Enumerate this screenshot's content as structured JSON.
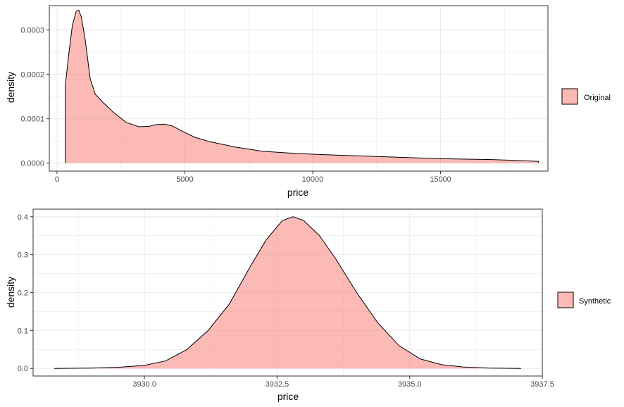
{
  "colors": {
    "fill": "#F8766D",
    "fill_opacity": 0.5,
    "outline": "#000000",
    "grid": "#ebebeb",
    "panel_border": "#333333"
  },
  "chart_data": [
    {
      "type": "area",
      "xlabel": "price",
      "ylabel": "density",
      "xlim": [
        -300,
        19200
      ],
      "ylim": [
        -1.8e-05,
        0.000355
      ],
      "xticks": [
        0,
        5000,
        10000,
        15000
      ],
      "xtick_labels": [
        "0",
        "5000",
        "10000",
        "15000"
      ],
      "yticks": [
        0,
        0.0001,
        0.0002,
        0.0003
      ],
      "ytick_labels": [
        "0.0000",
        "0.0001",
        "0.0002",
        "0.0003"
      ],
      "grid": true,
      "legend": {
        "position": "right",
        "entries": [
          "Original"
        ]
      },
      "series": [
        {
          "name": "Original",
          "x": [
            326,
            450,
            600,
            750,
            850,
            950,
            1100,
            1300,
            1500,
            1800,
            2200,
            2700,
            3200,
            3600,
            3900,
            4200,
            4500,
            4900,
            5400,
            6000,
            7000,
            8000,
            9000,
            10000,
            11000,
            12000,
            13000,
            14000,
            15000,
            16000,
            17000,
            18000,
            18823
          ],
          "y": [
            0.000175,
            0.00024,
            0.00031,
            0.000342,
            0.000345,
            0.00033,
            0.00028,
            0.00019,
            0.000155,
            0.000137,
            0.000115,
            9.2e-05,
            8.2e-05,
            8.3e-05,
            8.7e-05,
            8.8e-05,
            8.4e-05,
            7.2e-05,
            5.8e-05,
            4.8e-05,
            3.6e-05,
            2.7e-05,
            2.3e-05,
            2e-05,
            1.8e-05,
            1.6e-05,
            1.4e-05,
            1.2e-05,
            1e-05,
            9e-06,
            8e-06,
            6e-06,
            4e-06
          ]
        }
      ]
    },
    {
      "type": "area",
      "xlabel": "price",
      "ylabel": "density",
      "xlim": [
        3927.9,
        3937.5
      ],
      "ylim": [
        -0.02,
        0.42
      ],
      "xticks": [
        3930.0,
        3932.5,
        3935.0,
        3937.5
      ],
      "xtick_labels": [
        "3930.0",
        "3932.5",
        "3935.0",
        "3937.5"
      ],
      "yticks": [
        0.0,
        0.1,
        0.2,
        0.3,
        0.4
      ],
      "ytick_labels": [
        "0.0",
        "0.1",
        "0.2",
        "0.3",
        "0.4"
      ],
      "grid": true,
      "legend": {
        "position": "right",
        "entries": [
          "Synthetic"
        ]
      },
      "series": [
        {
          "name": "Synthetic",
          "x": [
            3928.3,
            3929.0,
            3929.5,
            3930.0,
            3930.4,
            3930.8,
            3931.2,
            3931.6,
            3932.0,
            3932.3,
            3932.6,
            3932.8,
            3933.0,
            3933.3,
            3933.6,
            3934.0,
            3934.4,
            3934.8,
            3935.2,
            3935.6,
            3936.0,
            3936.5,
            3937.1
          ],
          "y": [
            0.0,
            0.001,
            0.003,
            0.008,
            0.02,
            0.05,
            0.1,
            0.17,
            0.27,
            0.34,
            0.39,
            0.4,
            0.39,
            0.35,
            0.29,
            0.2,
            0.12,
            0.06,
            0.025,
            0.01,
            0.004,
            0.001,
            0.0
          ]
        }
      ]
    }
  ]
}
